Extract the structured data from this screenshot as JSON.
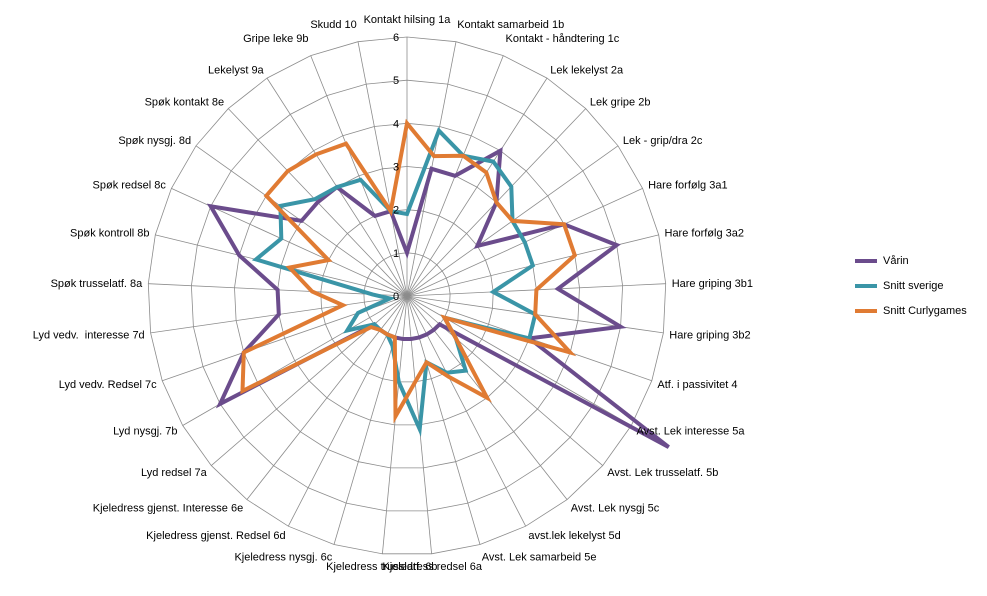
{
  "chart_data": {
    "type": "radar",
    "categories": [
      "Kontakt hilsing 1a",
      "Kontakt samarbeid 1b",
      "Kontakt - håndtering 1c",
      "Lek lekelyst 2a",
      "Lek gripe 2b",
      "Lek - grip/dra 2c",
      "Hare forfølg 3a1",
      "Hare forfølg 3a2",
      "Hare griping 3b1",
      "Hare griping 3b2",
      "Atf. i passivitet 4",
      "Avst. Lek interesse 5a",
      "Avst. Lek trusselatf. 5b",
      "Avst. Lek nysgj 5c",
      "avst.lek lekelyst 5d",
      "Avst. Lek samarbeid 5e",
      "Kjeledress redsel 6a",
      "Kjeledress trusslatf. 6b",
      "Kjeledress nysgj. 6c",
      "Kjeledress gjenst. Redsel 6d",
      "Kjeledress gjenst. Interesse 6e",
      "Lyd redsel 7a",
      "Lyd nysgj. 7b",
      "Lyd vedv. Redsel 7c",
      "Lyd vedv.  interesse 7d",
      "Spøk trusselatf. 8a",
      "Spøk kontroll 8b",
      "Spøk redsel 8c",
      "Spøk nysgj. 8d",
      "Spøk kontakt 8e",
      "Lekelyst 9a",
      "Gripe leke 9b",
      "Skudd 10"
    ],
    "rmin": 0,
    "rmax": 6,
    "ticks": [
      "0",
      "1",
      "2",
      "3",
      "4",
      "5",
      "6"
    ],
    "grid": true,
    "legend_position": "right",
    "series": [
      {
        "name": "Vårin",
        "color": "#6B4C8C",
        "values": [
          1,
          3,
          3,
          4,
          3,
          2,
          4,
          5,
          3.5,
          5,
          3,
          7,
          1,
          1,
          1,
          1,
          1,
          1,
          1,
          1,
          1,
          1,
          5,
          4,
          3,
          3,
          4,
          5,
          3,
          3,
          3,
          2,
          2
        ]
      },
      {
        "name": "Snitt sverige",
        "color": "#3A95A7",
        "values": [
          1.9,
          3.9,
          3.5,
          3.7,
          3.5,
          3.0,
          3.0,
          3.0,
          2.0,
          3.0,
          3.0,
          1.0,
          1.5,
          2.2,
          2.0,
          1.6,
          3.1,
          2.0,
          1.2,
          1.0,
          1.0,
          1.0,
          1.6,
          1.2,
          0.4,
          0.8,
          3.6,
          3.2,
          3.6,
          3.1,
          3.0,
          2.9,
          2.0
        ]
      },
      {
        "name": "Snitt Curlygames",
        "color": "#E07B33",
        "values": [
          4.0,
          3.3,
          3.5,
          3.4,
          3.0,
          3.0,
          4.0,
          4.0,
          3.0,
          3.0,
          4.0,
          1.0,
          1.5,
          3.0,
          2.1,
          1.6,
          2.0,
          2.8,
          1.0,
          1.0,
          1.0,
          1.1,
          4.4,
          4.0,
          1.5,
          2.2,
          2.8,
          2.0,
          4.0,
          4.0,
          3.9,
          3.8,
          2.0
        ]
      }
    ]
  }
}
